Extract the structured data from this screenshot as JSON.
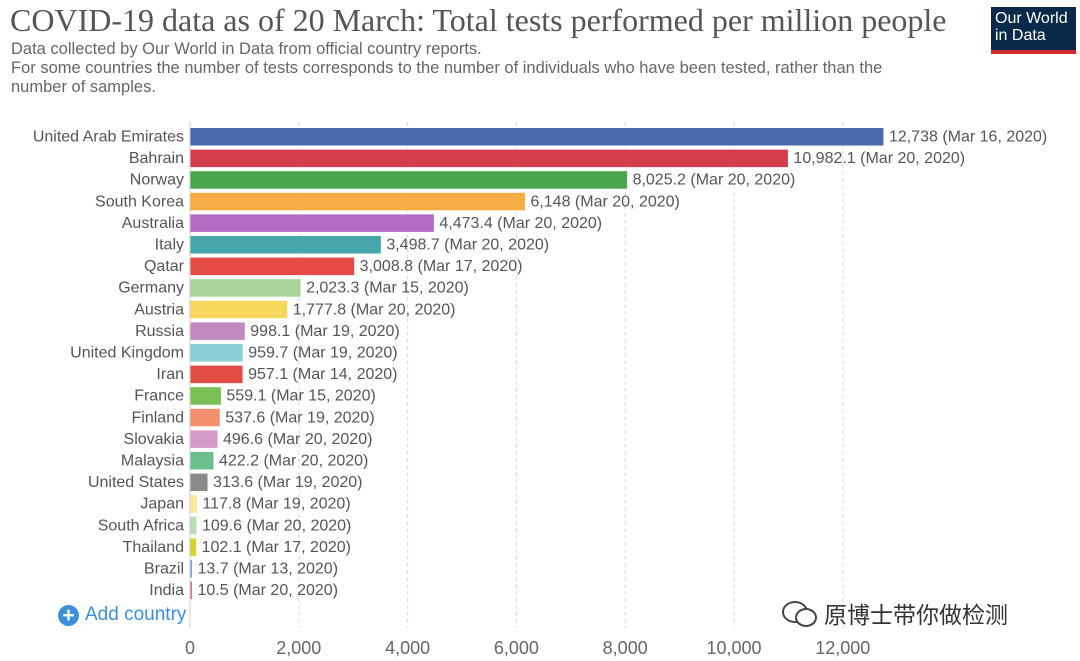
{
  "title": "COVID-19 data as of 20 March: Total tests performed per million people",
  "subtitle_lines": [
    "Data collected by Our World in Data from official country reports.",
    "For some countries the number of tests corresponds to the number of individuals who have been tested, rather than the",
    "number of samples."
  ],
  "logo": {
    "line1": "Our World",
    "line2": "in Data"
  },
  "add_country_label": "Add country",
  "watermark_text": "原博士带你做检测",
  "chart_data": {
    "type": "bar",
    "orientation": "horizontal",
    "xlim": [
      0,
      13000
    ],
    "xticks": [
      0,
      2000,
      4000,
      6000,
      8000,
      10000,
      12000
    ],
    "xtick_labels": [
      "0",
      "2,000",
      "4,000",
      "6,000",
      "8,000",
      "10,000",
      "12,000"
    ],
    "grid": "vertical dashed",
    "bars": [
      {
        "category": "United Arab Emirates",
        "value": 12738,
        "label": "12,738 (Mar 16, 2020)",
        "color": "#4a6aae"
      },
      {
        "category": "Bahrain",
        "value": 10982.1,
        "label": "10,982.1 (Mar 20, 2020)",
        "color": "#d43f4b"
      },
      {
        "category": "Norway",
        "value": 8025.2,
        "label": "8,025.2 (Mar 20, 2020)",
        "color": "#4aa64e"
      },
      {
        "category": "South Korea",
        "value": 6148,
        "label": "6,148 (Mar 20, 2020)",
        "color": "#f6ac45"
      },
      {
        "category": "Australia",
        "value": 4473.4,
        "label": "4,473.4 (Mar 20, 2020)",
        "color": "#b56ac4"
      },
      {
        "category": "Italy",
        "value": 3498.7,
        "label": "3,498.7 (Mar 20, 2020)",
        "color": "#45a5a8"
      },
      {
        "category": "Qatar",
        "value": 3008.8,
        "label": "3,008.8 (Mar 17, 2020)",
        "color": "#e64a45"
      },
      {
        "category": "Germany",
        "value": 2023.3,
        "label": "2,023.3 (Mar 15, 2020)",
        "color": "#a8d49a"
      },
      {
        "category": "Austria",
        "value": 1777.8,
        "label": "1,777.8 (Mar 20, 2020)",
        "color": "#f8d85c"
      },
      {
        "category": "Russia",
        "value": 998.1,
        "label": "998.1 (Mar 19, 2020)",
        "color": "#c28ac0"
      },
      {
        "category": "United Kingdom",
        "value": 959.7,
        "label": "959.7 (Mar 19, 2020)",
        "color": "#8ccfd6"
      },
      {
        "category": "Iran",
        "value": 957.1,
        "label": "957.1 (Mar 14, 2020)",
        "color": "#e34b45"
      },
      {
        "category": "France",
        "value": 559.1,
        "label": "559.1 (Mar 15, 2020)",
        "color": "#79bf56"
      },
      {
        "category": "Finland",
        "value": 537.6,
        "label": "537.6 (Mar 19, 2020)",
        "color": "#f2906d"
      },
      {
        "category": "Slovakia",
        "value": 496.6,
        "label": "496.6 (Mar 20, 2020)",
        "color": "#d39ccb"
      },
      {
        "category": "Malaysia",
        "value": 422.2,
        "label": "422.2 (Mar 20, 2020)",
        "color": "#6fbf8e"
      },
      {
        "category": "United States",
        "value": 313.6,
        "label": "313.6 (Mar 19, 2020)",
        "color": "#8a8a8a"
      },
      {
        "category": "Japan",
        "value": 117.8,
        "label": "117.8 (Mar 19, 2020)",
        "color": "#fae99a"
      },
      {
        "category": "South Africa",
        "value": 109.6,
        "label": "109.6 (Mar 20, 2020)",
        "color": "#b8deb0"
      },
      {
        "category": "Thailand",
        "value": 102.1,
        "label": "102.1 (Mar 17, 2020)",
        "color": "#d8d22a"
      },
      {
        "category": "Brazil",
        "value": 13.7,
        "label": "13.7 (Mar 13, 2020)",
        "color": "#7aa0d8"
      },
      {
        "category": "India",
        "value": 10.5,
        "label": "10.5 (Mar 20, 2020)",
        "color": "#e07080"
      }
    ]
  }
}
